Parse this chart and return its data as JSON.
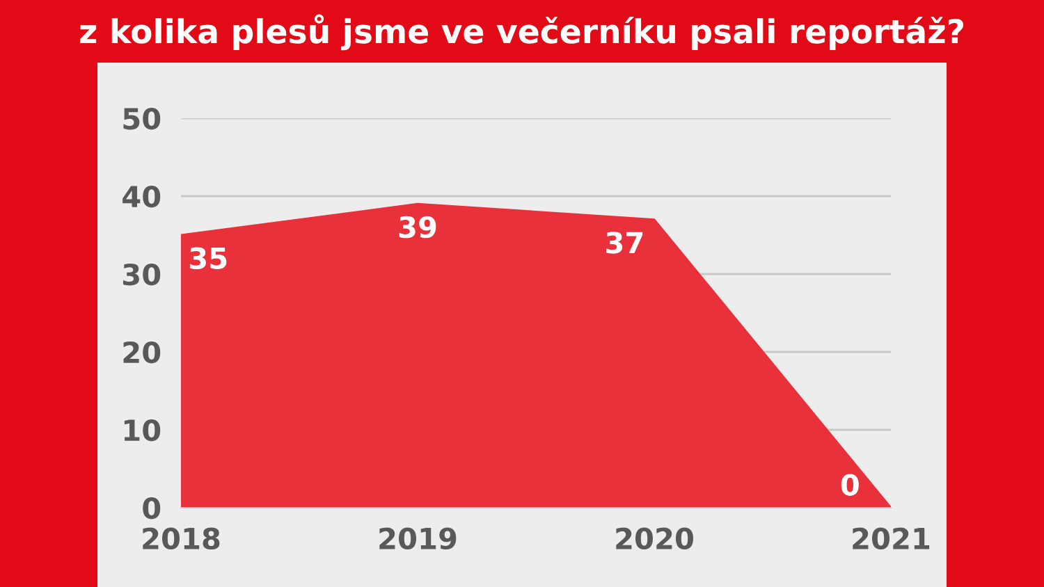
{
  "chart_data": {
    "type": "area",
    "title": "z kolika plesů jsme ve večerníku psali reportáž?",
    "categories": [
      "2018",
      "2019",
      "2020",
      "2021"
    ],
    "values": [
      35,
      39,
      37,
      0
    ],
    "color": "#e8313b",
    "ylim": [
      0,
      50
    ],
    "yticks": [
      0,
      10,
      20,
      30,
      40,
      50
    ],
    "grid": "y",
    "data_labels": true
  }
}
